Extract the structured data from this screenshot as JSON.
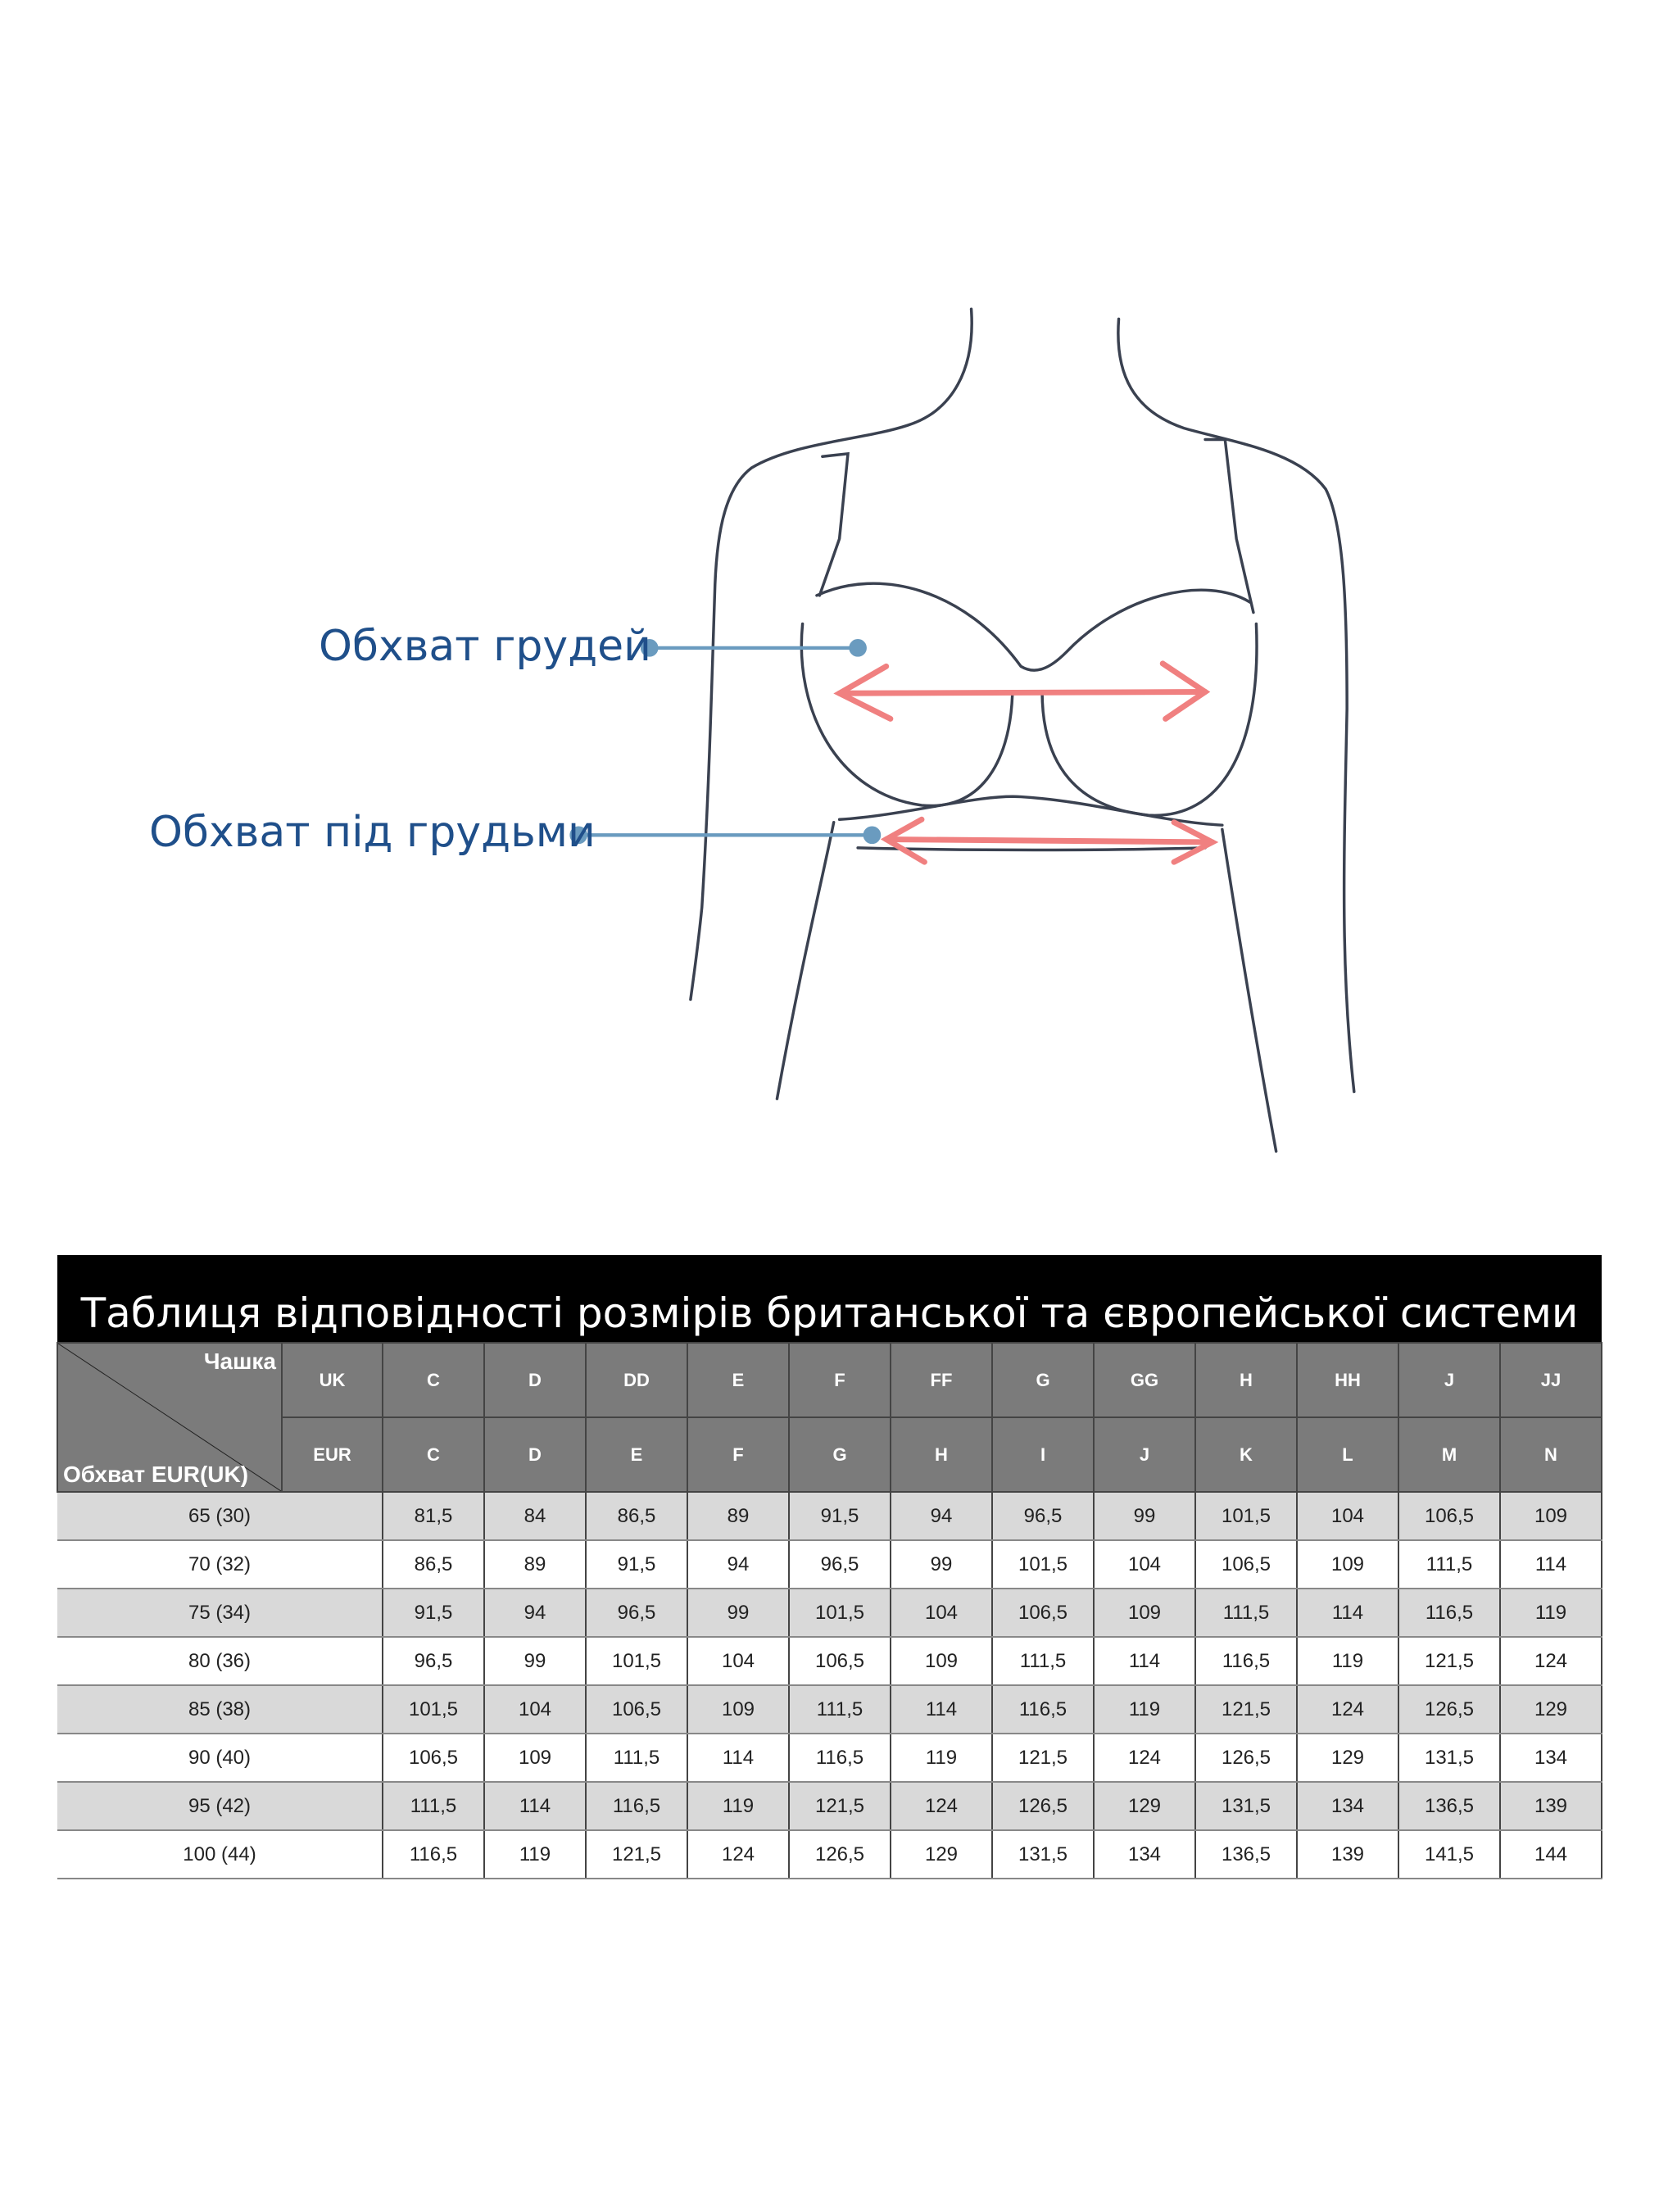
{
  "figure": {
    "label_bust": "Обхват грудей",
    "label_underbust": "Обхват під грудьми",
    "colors": {
      "label": "#1f4f8a",
      "pointer": "#6a9bbf",
      "arrow": "#f08080",
      "sketch": "#3a4150"
    }
  },
  "table": {
    "title": "Таблиця відповідності розмірів британської та європейської системи",
    "corner_top": "Чашка",
    "corner_bottom": "Обхват EUR(UK)",
    "uk_label": "UK",
    "eur_label": "EUR",
    "uk_cups": [
      "C",
      "D",
      "DD",
      "E",
      "F",
      "FF",
      "G",
      "GG",
      "H",
      "HH",
      "J",
      "JJ"
    ],
    "eur_cups": [
      "C",
      "D",
      "E",
      "F",
      "G",
      "H",
      "I",
      "J",
      "K",
      "L",
      "M",
      "N"
    ],
    "rows": [
      {
        "band": "65 (30)",
        "values": [
          "81,5",
          "84",
          "86,5",
          "89",
          "91,5",
          "94",
          "96,5",
          "99",
          "101,5",
          "104",
          "106,5",
          "109"
        ]
      },
      {
        "band": "70 (32)",
        "values": [
          "86,5",
          "89",
          "91,5",
          "94",
          "96,5",
          "99",
          "101,5",
          "104",
          "106,5",
          "109",
          "111,5",
          "114"
        ]
      },
      {
        "band": "75 (34)",
        "values": [
          "91,5",
          "94",
          "96,5",
          "99",
          "101,5",
          "104",
          "106,5",
          "109",
          "111,5",
          "114",
          "116,5",
          "119"
        ]
      },
      {
        "band": "80 (36)",
        "values": [
          "96,5",
          "99",
          "101,5",
          "104",
          "106,5",
          "109",
          "111,5",
          "114",
          "116,5",
          "119",
          "121,5",
          "124"
        ]
      },
      {
        "band": "85 (38)",
        "values": [
          "101,5",
          "104",
          "106,5",
          "109",
          "111,5",
          "114",
          "116,5",
          "119",
          "121,5",
          "124",
          "126,5",
          "129"
        ]
      },
      {
        "band": "90 (40)",
        "values": [
          "106,5",
          "109",
          "111,5",
          "114",
          "116,5",
          "119",
          "121,5",
          "124",
          "126,5",
          "129",
          "131,5",
          "134"
        ]
      },
      {
        "band": "95 (42)",
        "values": [
          "111,5",
          "114",
          "116,5",
          "119",
          "121,5",
          "124",
          "126,5",
          "129",
          "131,5",
          "134",
          "136,5",
          "139"
        ]
      },
      {
        "band": "100 (44)",
        "values": [
          "116,5",
          "119",
          "121,5",
          "124",
          "126,5",
          "129",
          "131,5",
          "134",
          "136,5",
          "139",
          "141,5",
          "144"
        ]
      }
    ]
  }
}
